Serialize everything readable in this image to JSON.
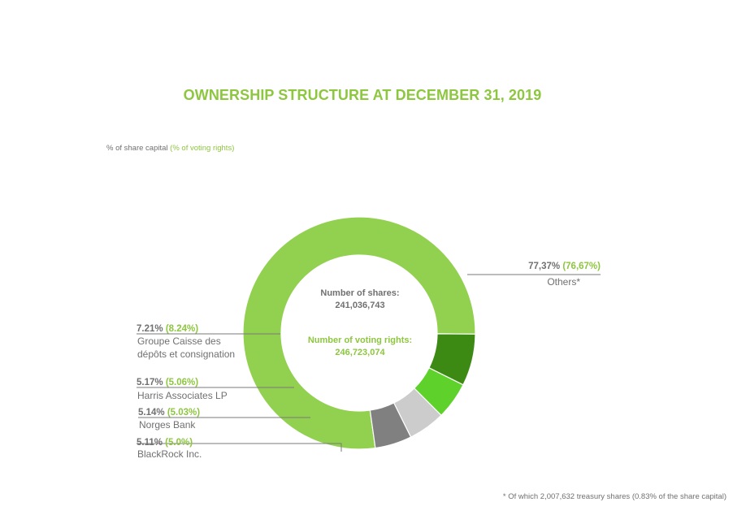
{
  "header": {
    "title": "OWNERSHIP STRUCTURE AT DECEMBER 31, 2019",
    "subtitle_main": "%  of share capital",
    "subtitle_green": "(% of voting rights)"
  },
  "center": {
    "shares_label": "Number of shares:",
    "shares_value": "241,036,743",
    "voting_label": "Number of voting rights:",
    "voting_value": "246,723,074"
  },
  "footnote": "* Of which 2,007,632 treasury shares (0.83% of the share capital)",
  "colors": {
    "title_green": "#8dc63f",
    "gray_text": "#707070"
  },
  "chart_data": {
    "type": "pie",
    "variant": "donut",
    "unit": "% of share capital",
    "slices": [
      {
        "name": "Others*",
        "share_capital_pct": 77.37,
        "voting_rights_pct": 76.67,
        "share_label": "77,37%",
        "voting_label": "(76,67%)",
        "color": "#92d050"
      },
      {
        "name": "Groupe Caisse des dépôts et consignation",
        "name_lines": [
          "Groupe Caisse des",
          "dépôts et consignation"
        ],
        "share_capital_pct": 7.21,
        "voting_rights_pct": 8.24,
        "share_label": "7.21%",
        "voting_label": "(8.24%)",
        "color": "#3c8a14"
      },
      {
        "name": "Harris Associates LP",
        "name_lines": [
          "Harris Associates LP"
        ],
        "share_capital_pct": 5.17,
        "voting_rights_pct": 5.06,
        "share_label": "5.17%",
        "voting_label": "(5.06%)",
        "color": "#5ed12a"
      },
      {
        "name": "Norges Bank",
        "name_lines": [
          "Norges Bank"
        ],
        "share_capital_pct": 5.14,
        "voting_rights_pct": 5.03,
        "share_label": "5.14%",
        "voting_label": "(5.03%)",
        "color": "#cccccc"
      },
      {
        "name": "BlackRock Inc.",
        "name_lines": [
          "BlackRock Inc."
        ],
        "share_capital_pct": 5.11,
        "voting_rights_pct": 5.0,
        "share_label": "5.11%",
        "voting_label": "(5.0%)",
        "color": "#808080"
      }
    ],
    "legend": "none",
    "labels": "outside with leader lines"
  }
}
